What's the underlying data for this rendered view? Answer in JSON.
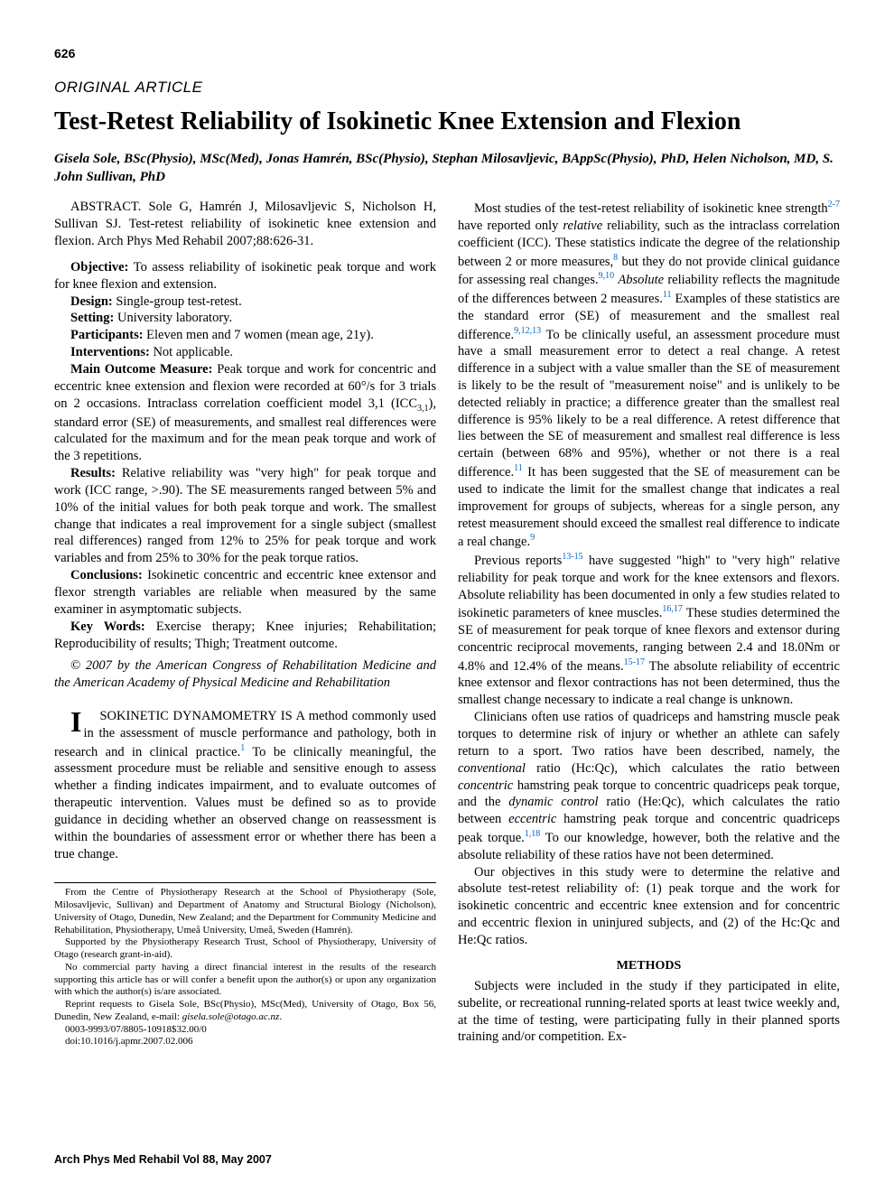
{
  "page_number": "626",
  "article_type": "ORIGINAL ARTICLE",
  "title": "Test-Retest Reliability of Isokinetic Knee Extension and Flexion",
  "authors": "Gisela Sole, BSc(Physio), MSc(Med), Jonas Hamrén, BSc(Physio), Stephan Milosavljevic, BAppSc(Physio), PhD, Helen Nicholson, MD, S. John Sullivan, PhD",
  "abstract_citation": "ABSTRACT. Sole G, Hamrén J, Milosavljevic S, Nicholson H, Sullivan SJ. Test-retest reliability of isokinetic knee extension and flexion. Arch Phys Med Rehabil 2007;88:626-31.",
  "abstract": {
    "objective_label": "Objective:",
    "objective": " To assess reliability of isokinetic peak torque and work for knee flexion and extension.",
    "design_label": "Design:",
    "design": " Single-group test-retest.",
    "setting_label": "Setting:",
    "setting": " University laboratory.",
    "participants_label": "Participants:",
    "participants": " Eleven men and 7 women (mean age, 21y).",
    "interventions_label": "Interventions:",
    "interventions": " Not applicable.",
    "outcome_label": "Main Outcome Measure:",
    "outcome": " Peak torque and work for concentric and eccentric knee extension and flexion were recorded at 60°/s for 3 trials on 2 occasions. Intraclass correlation coefficient model 3,1 (ICC",
    "outcome_sub": "3,1",
    "outcome2": "), standard error (SE) of measurements, and smallest real differences were calculated for the maximum and for the mean peak torque and work of the 3 repetitions.",
    "results_label": "Results:",
    "results": " Relative reliability was \"very high\" for peak torque and work (ICC range, >.90). The SE measurements ranged between 5% and 10% of the initial values for both peak torque and work. The smallest change that indicates a real improvement for a single subject (smallest real differences) ranged from 12% to 25% for peak torque and work variables and from 25% to 30% for the peak torque ratios.",
    "conclusions_label": "Conclusions:",
    "conclusions": " Isokinetic concentric and eccentric knee extensor and flexor strength variables are reliable when measured by the same examiner in asymptomatic subjects.",
    "keywords_label": "Key Words:",
    "keywords": " Exercise therapy; Knee injuries; Rehabilitation; Reproducibility of results; Thigh; Treatment outcome.",
    "copyright": "© 2007 by the American Congress of Rehabilitation Medicine and the American Academy of Physical Medicine and Rehabilitation"
  },
  "body": {
    "p1a": "SOKINETIC DYNAMOMETRY IS A method commonly used in the assessment of muscle performance and pathology, both in research and in clinical practice.",
    "p1_ref1": "1",
    "p1b": " To be clinically meaningful, the assessment procedure must be reliable and sensitive enough to assess whether a finding indicates impairment, and to evaluate outcomes of therapeutic intervention. Values must be defined so as to provide guidance in deciding whether an observed change on reassessment is within the boundaries of assessment error or whether there has been a true change.",
    "p2a": "Most studies of the test-retest reliability of isokinetic knee strength",
    "p2_ref1": "2-7",
    "p2b": " have reported only ",
    "p2_rel": "relative",
    "p2c": " reliability, such as the intraclass correlation coefficient (ICC). These statistics indicate the degree of the relationship between 2 or more measures,",
    "p2_ref2": "8",
    "p2d": " but they do not provide clinical guidance for assessing real changes.",
    "p2_ref3": "9,10",
    "p2e": " ",
    "p2_abs": "Absolute",
    "p2f": " reliability reflects the magnitude of the differences between 2 measures.",
    "p2_ref4": "11",
    "p2g": " Examples of these statistics are the standard error (SE) of measurement and the smallest real difference.",
    "p2_ref5": "9,12,13",
    "p2h": " To be clinically useful, an assessment procedure must have a small measurement error to detect a real change. A retest difference in a subject with a value smaller than the SE of measurement is likely to be the result of \"measurement noise\" and is unlikely to be detected reliably in practice; a difference greater than the smallest real difference is 95% likely to be a real difference. A retest difference that lies between the SE of measurement and smallest real difference is less certain (between 68% and 95%), whether or not there is a real difference.",
    "p2_ref6": "11",
    "p2i": " It has been suggested that the SE of measurement can be used to indicate the limit for the smallest change that indicates a real improvement for groups of subjects, whereas for a single person, any retest measurement should exceed the smallest real difference to indicate a real change.",
    "p2_ref7": "9",
    "p3a": "Previous reports",
    "p3_ref1": "13-15",
    "p3b": " have suggested \"high\" to \"very high\" relative reliability for peak torque and work for the knee extensors and flexors. Absolute reliability has been documented in only a few studies related to isokinetic parameters of knee muscles.",
    "p3_ref2": "16,17",
    "p3c": " These studies determined the SE of measurement for peak torque of knee flexors and extensor during concentric reciprocal movements, ranging between 2.4 and 18.0Nm or 4.8% and 12.4% of the means.",
    "p3_ref3": "15-17",
    "p3d": " The absolute reliability of eccentric knee extensor and flexor contractions has not been determined, thus the smallest change necessary to indicate a real change is unknown.",
    "p4a": "Clinicians often use ratios of quadriceps and hamstring muscle peak torques to determine risk of injury or whether an athlete can safely return to a sport. Two ratios have been described, namely, the ",
    "p4_conv": "conventional",
    "p4b": " ratio (Hc:Qc), which calculates the ratio between ",
    "p4_conc": "concentric",
    "p4c": " hamstring peak torque to concentric quadriceps peak torque, and the ",
    "p4_dyn": "dynamic control",
    "p4d": " ratio (He:Qc), which calculates the ratio between ",
    "p4_ecc": "eccentric",
    "p4e": " hamstring peak torque and concentric quadriceps peak torque.",
    "p4_ref1": "1,18",
    "p4f": " To our knowledge, however, both the relative and the absolute reliability of these ratios have not been determined.",
    "p5": "Our objectives in this study were to determine the relative and absolute test-retest reliability of: (1) peak torque and the work for isokinetic concentric and eccentric knee extension and for concentric and eccentric flexion in uninjured subjects, and (2) of the Hc:Qc and He:Qc ratios.",
    "methods_head": "METHODS",
    "p6": "Subjects were included in the study if they participated in elite, subelite, or recreational running-related sports at least twice weekly and, at the time of testing, were participating fully in their planned sports training and/or competition. Ex-"
  },
  "footnotes": {
    "f1": "From the Centre of Physiotherapy Research at the School of Physiotherapy (Sole, Milosavljevic, Sullivan) and Department of Anatomy and Structural Biology (Nicholson), University of Otago, Dunedin, New Zealand; and the Department for Community Medicine and Rehabilitation, Physiotherapy, Umeå University, Umeå, Sweden (Hamrén).",
    "f2": "Supported by the Physiotherapy Research Trust, School of Physiotherapy, University of Otago (research grant-in-aid).",
    "f3": "No commercial party having a direct financial interest in the results of the research supporting this article has or will confer a benefit upon the author(s) or upon any organization with which the author(s) is/are associated.",
    "f4a": "Reprint requests to Gisela Sole, BSc(Physio), MSc(Med), University of Otago, Box 56, Dunedin, New Zealand, e-mail: ",
    "f4_email": "gisela.sole@otago.ac.nz",
    "f4b": ".",
    "f5": "0003-9993/07/8805-10918$32.00/0",
    "f6": "doi:10.1016/j.apmr.2007.02.006"
  },
  "footer": "Arch Phys Med Rehabil Vol 88, May 2007",
  "colors": {
    "text": "#000000",
    "link": "#0066cc",
    "background": "#ffffff"
  },
  "typography": {
    "body_font": "Times New Roman",
    "sans_font": "Arial",
    "title_size_pt": 21,
    "body_size_pt": 11,
    "footnote_size_pt": 8
  }
}
